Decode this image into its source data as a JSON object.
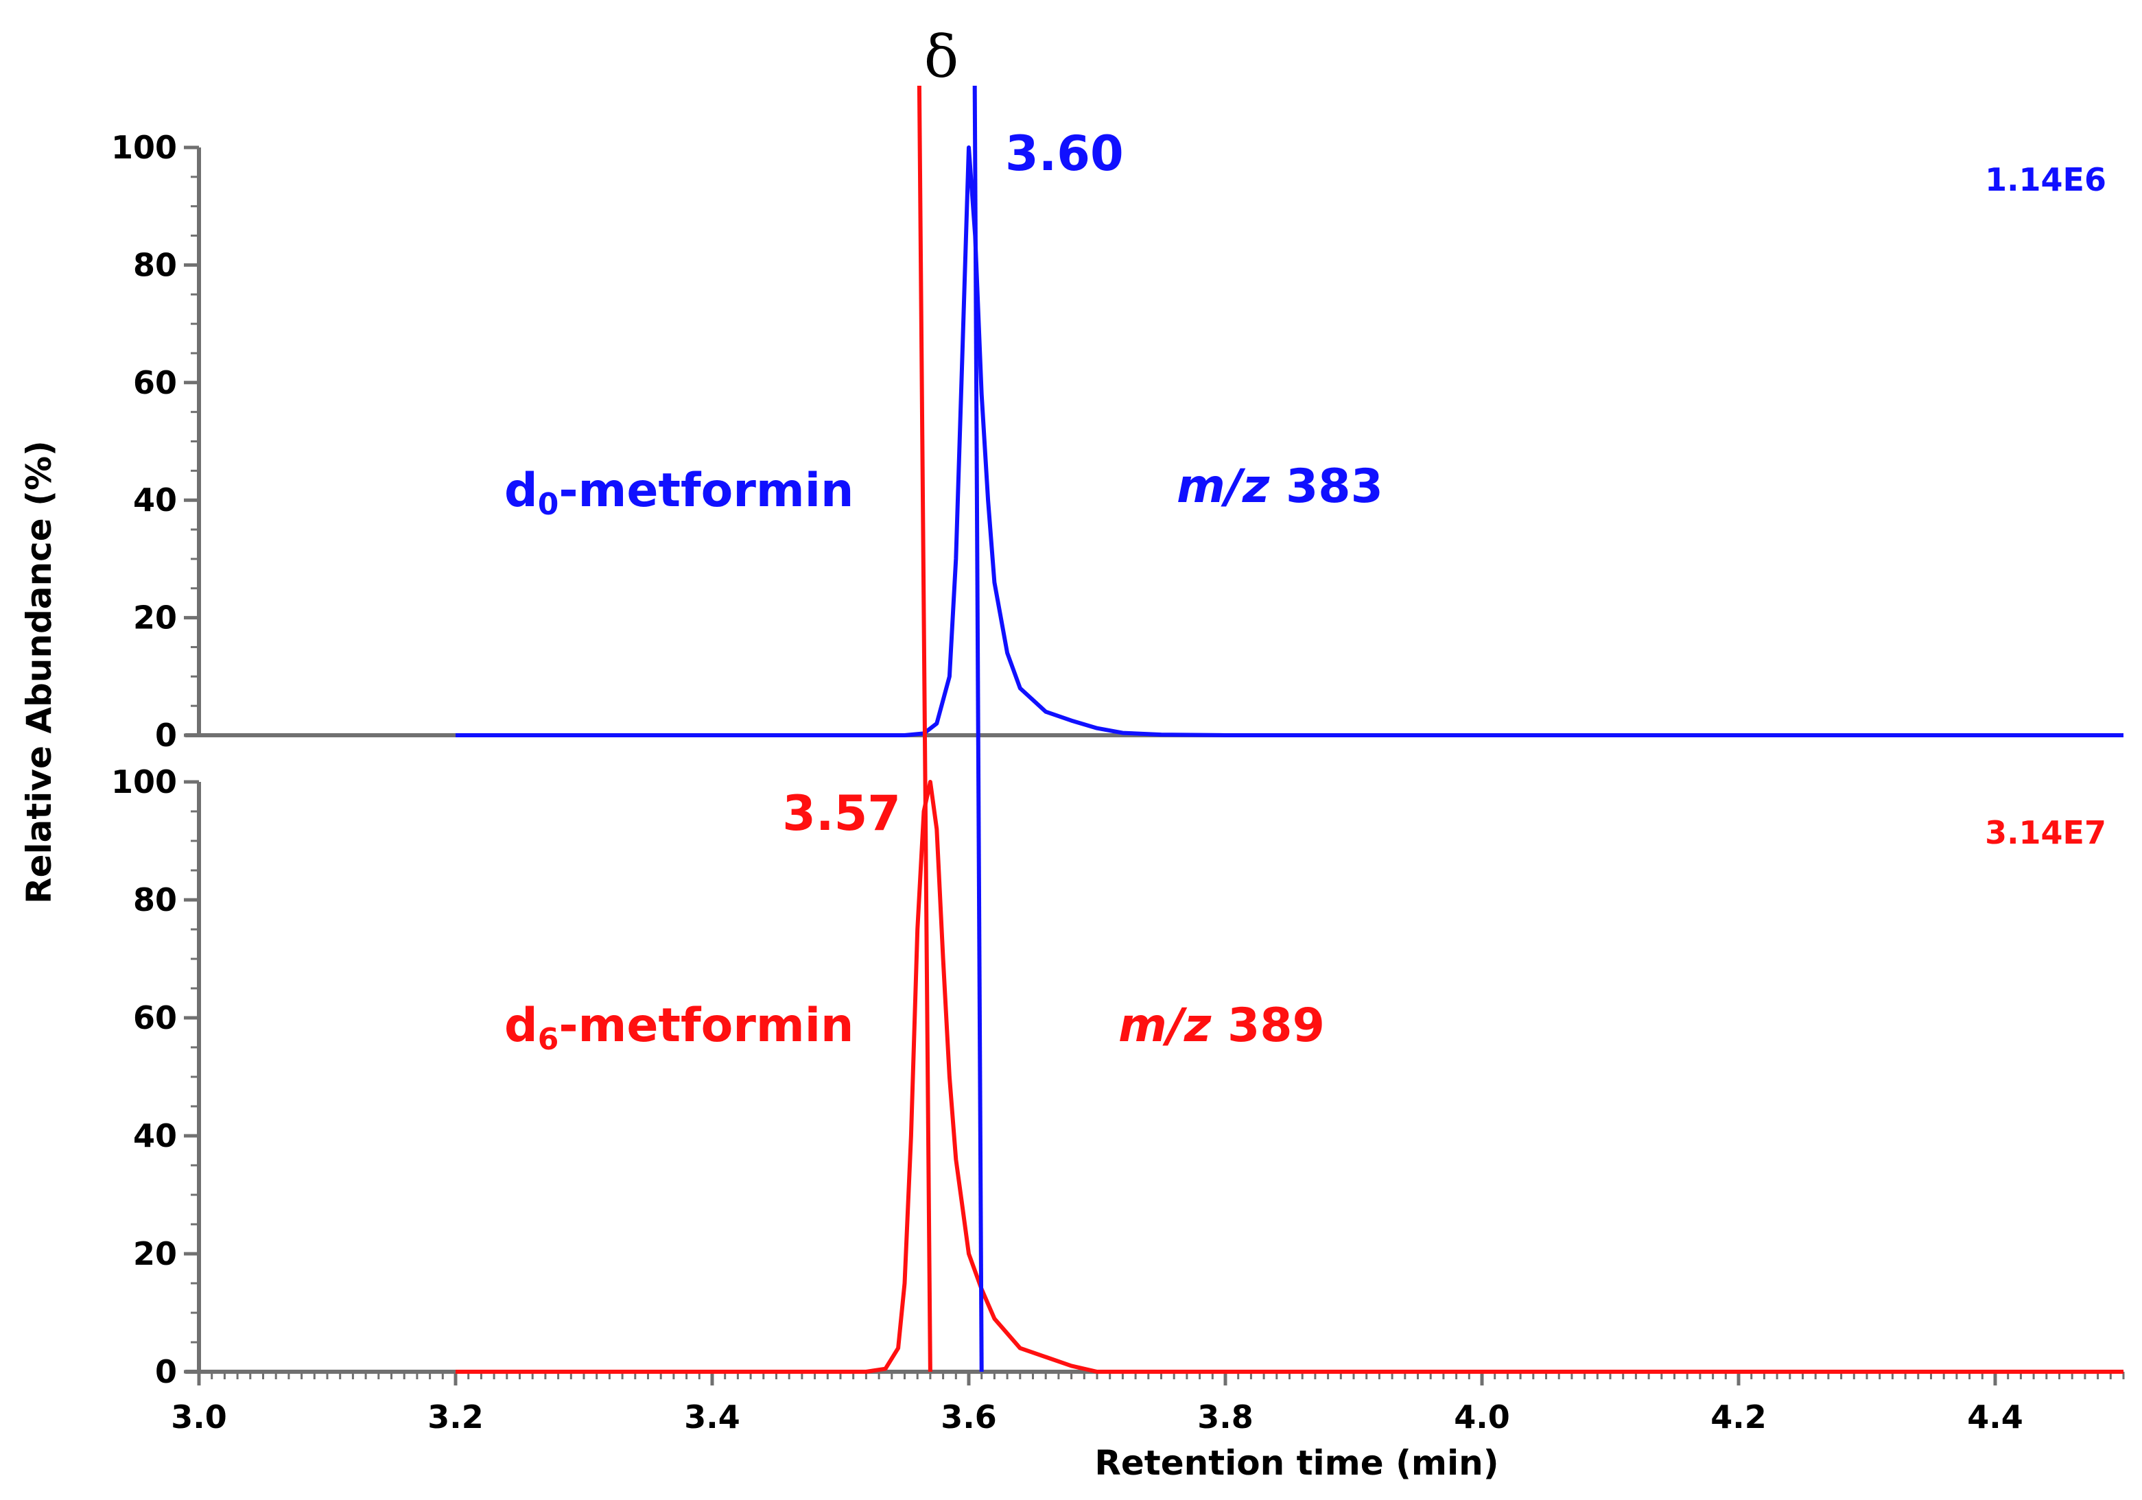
{
  "chart_data": {
    "type": "line",
    "xlabel": "Retention time (min)",
    "ylabel": "Relative Abundance (%)",
    "xlim": [
      3.0,
      4.5
    ],
    "x_ticks": [
      "3.0",
      "3.2",
      "3.4",
      "3.6",
      "3.8",
      "4.0",
      "4.2",
      "4.4"
    ],
    "ylim": [
      0,
      100
    ],
    "y_ticks": [
      "0",
      "20",
      "40",
      "60",
      "80",
      "100"
    ],
    "delta_label": "δ",
    "colors": {
      "top": "#1010ff",
      "bottom": "#ff1010",
      "axis": "#707070"
    },
    "panels": [
      {
        "name": "d0-metformin",
        "compound_prefix": "d",
        "compound_sub": "0",
        "compound_suffix": "-metformin",
        "mz_italic": "m/z",
        "mz_value": "383",
        "peak_label": "3.60",
        "intensity": "1.14E6",
        "marker_rt": 3.61,
        "series": {
          "x": [
            3.2,
            3.55,
            3.565,
            3.575,
            3.585,
            3.59,
            3.595,
            3.6,
            3.605,
            3.61,
            3.615,
            3.62,
            3.63,
            3.64,
            3.66,
            3.68,
            3.7,
            3.72,
            3.75,
            3.8,
            4.5
          ],
          "y": [
            0,
            0,
            0.3,
            2,
            10,
            30,
            65,
            100,
            85,
            58,
            40,
            26,
            14,
            8,
            4,
            2.5,
            1.2,
            0.4,
            0.1,
            0,
            0
          ]
        }
      },
      {
        "name": "d6-metformin",
        "compound_prefix": "d",
        "compound_sub": "6",
        "compound_suffix": "-metformin",
        "mz_italic": "m/z",
        "mz_value": "389",
        "peak_label": "3.57",
        "intensity": "3.14E7",
        "marker_rt": 3.57,
        "series": {
          "x": [
            3.2,
            3.52,
            3.535,
            3.545,
            3.55,
            3.555,
            3.56,
            3.565,
            3.57,
            3.575,
            3.58,
            3.585,
            3.59,
            3.595,
            3.6,
            3.61,
            3.62,
            3.64,
            3.66,
            3.68,
            3.7,
            4.5
          ],
          "y": [
            0,
            0,
            0.5,
            4,
            15,
            40,
            75,
            95,
            100,
            92,
            70,
            50,
            36,
            28,
            20,
            14,
            9,
            4,
            2.5,
            1,
            0,
            0
          ]
        }
      }
    ]
  }
}
